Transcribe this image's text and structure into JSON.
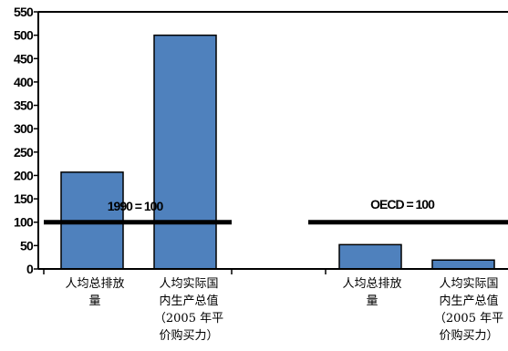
{
  "chart_data": {
    "type": "bar",
    "ylim": [
      0,
      550
    ],
    "yticks": [
      0,
      50,
      100,
      150,
      200,
      250,
      300,
      350,
      400,
      450,
      500,
      550
    ],
    "groups": [
      {
        "reference_label": "1990 = 100",
        "reference_value": 100,
        "bars": [
          {
            "label": [
              "人均总排放",
              "量"
            ],
            "value": 207
          },
          {
            "label": [
              "人均实际国",
              "内生产总值",
              "（2005 年平",
              "价购买力）"
            ],
            "value": 500
          }
        ]
      },
      {
        "reference_label": "OECD = 100",
        "reference_value": 100,
        "bars": [
          {
            "label": [
              "人均总排放",
              "量"
            ],
            "value": 52
          },
          {
            "label": [
              "人均实际国",
              "内生产总值",
              "（2005 年平",
              "价购买力）"
            ],
            "value": 19
          }
        ]
      }
    ],
    "colors": {
      "bar": "#4F81BD",
      "bar_stroke": "#000000",
      "reference_line": "#000000",
      "axis": "#000000"
    }
  }
}
